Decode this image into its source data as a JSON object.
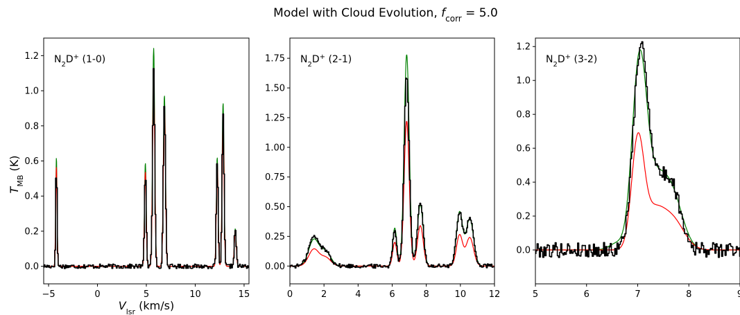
{
  "figure": {
    "title_prefix": "Model with Cloud Evolution, ",
    "title_var": "f",
    "title_sub": "corr",
    "title_suffix": " = 5.0"
  },
  "colors": {
    "observed": "#000000",
    "model_red": "#ff0000",
    "model_green": "#008000"
  },
  "chart_data": [
    {
      "type": "line",
      "panel_label": {
        "main": "N",
        "sub": "2",
        "mid": "D",
        "sup": "+",
        "tail": " (1-0)"
      },
      "ylabel": {
        "main": "T",
        "sub": "MB",
        "unit": " (K)"
      },
      "xlabel": {
        "main": "V",
        "sub": "lsr",
        "unit": " (km/s)"
      },
      "xlim": [
        -5.5,
        15.5
      ],
      "ylim": [
        -0.1,
        1.3
      ],
      "xticks": [
        -5,
        0,
        5,
        10,
        15
      ],
      "xtick_labels": [
        "−5",
        "0",
        "5",
        "10",
        "15"
      ],
      "yticks": [
        0.0,
        0.2,
        0.4,
        0.6,
        0.8,
        1.0,
        1.2
      ],
      "ytick_labels": [
        "0.0",
        "0.2",
        "0.4",
        "0.6",
        "0.8",
        "1.0",
        "1.2"
      ],
      "series": [
        {
          "key": "obs",
          "style": "step",
          "noise": 0.013,
          "scale": 1.0,
          "components": [
            [
              -4.2,
              0.58,
              0.07
            ],
            [
              4.9,
              0.55,
              0.09
            ],
            [
              5.75,
              1.12,
              0.11
            ],
            [
              6.85,
              0.93,
              0.11
            ],
            [
              12.25,
              0.6,
              0.09
            ],
            [
              12.85,
              0.86,
              0.1
            ],
            [
              14.1,
              0.21,
              0.1
            ]
          ]
        },
        {
          "key": "red",
          "style": "smooth",
          "noise": 0,
          "scale": 0.98,
          "components": [
            [
              -4.2,
              0.58,
              0.07
            ],
            [
              4.9,
              0.55,
              0.09
            ],
            [
              5.75,
              1.12,
              0.11
            ],
            [
              6.85,
              0.93,
              0.11
            ],
            [
              12.25,
              0.6,
              0.09
            ],
            [
              12.85,
              0.86,
              0.1
            ],
            [
              14.1,
              0.21,
              0.1
            ]
          ]
        },
        {
          "key": "green",
          "style": "smooth",
          "noise": 0,
          "scale": 1.07,
          "components": [
            [
              -4.2,
              0.58,
              0.07
            ],
            [
              4.9,
              0.55,
              0.09
            ],
            [
              5.75,
              1.16,
              0.11
            ],
            [
              6.85,
              0.91,
              0.11
            ],
            [
              12.25,
              0.58,
              0.09
            ],
            [
              12.85,
              0.87,
              0.1
            ],
            [
              14.1,
              0.2,
              0.1
            ]
          ]
        }
      ]
    },
    {
      "type": "line",
      "panel_label": {
        "main": "N",
        "sub": "2",
        "mid": "D",
        "sup": "+",
        "tail": " (2-1)"
      },
      "xlim": [
        0,
        12
      ],
      "ylim": [
        -0.15,
        1.92
      ],
      "xticks": [
        0,
        2,
        4,
        6,
        8,
        10,
        12
      ],
      "xtick_labels": [
        "0",
        "2",
        "4",
        "6",
        "8",
        "10",
        "12"
      ],
      "yticks": [
        0.0,
        0.25,
        0.5,
        0.75,
        1.0,
        1.25,
        1.5,
        1.75
      ],
      "ytick_labels": [
        "0.00",
        "0.25",
        "0.50",
        "0.75",
        "1.00",
        "1.25",
        "1.50",
        "1.75"
      ],
      "series": [
        {
          "key": "obs",
          "style": "step",
          "noise": 0.018,
          "scale": 1.0,
          "components": [
            [
              1.4,
              0.24,
              0.3
            ],
            [
              2.1,
              0.12,
              0.3
            ],
            [
              6.15,
              0.3,
              0.12
            ],
            [
              6.85,
              1.6,
              0.15
            ],
            [
              7.65,
              0.53,
              0.17
            ],
            [
              9.95,
              0.45,
              0.18
            ],
            [
              10.55,
              0.4,
              0.22
            ]
          ]
        },
        {
          "key": "red",
          "style": "smooth",
          "noise": 0,
          "scale": 1.0,
          "components": [
            [
              1.4,
              0.14,
              0.3
            ],
            [
              2.1,
              0.07,
              0.3
            ],
            [
              6.15,
              0.2,
              0.12
            ],
            [
              6.85,
              1.22,
              0.15
            ],
            [
              7.65,
              0.34,
              0.17
            ],
            [
              9.95,
              0.26,
              0.18
            ],
            [
              10.55,
              0.24,
              0.22
            ]
          ]
        },
        {
          "key": "green",
          "style": "smooth",
          "noise": 0,
          "scale": 1.0,
          "components": [
            [
              1.4,
              0.22,
              0.3
            ],
            [
              2.1,
              0.12,
              0.3
            ],
            [
              6.15,
              0.32,
              0.12
            ],
            [
              6.85,
              1.78,
              0.15
            ],
            [
              7.65,
              0.52,
              0.17
            ],
            [
              9.95,
              0.45,
              0.18
            ],
            [
              10.55,
              0.4,
              0.22
            ]
          ]
        }
      ]
    },
    {
      "type": "line",
      "panel_label": {
        "main": "N",
        "sub": "2",
        "mid": "D",
        "sup": "+",
        "tail": " (3-2)"
      },
      "xlim": [
        5,
        9
      ],
      "ylim": [
        -0.2,
        1.25
      ],
      "xticks": [
        5,
        6,
        7,
        8,
        9
      ],
      "xtick_labels": [
        "5",
        "6",
        "7",
        "8",
        "9"
      ],
      "yticks": [
        0.0,
        0.2,
        0.4,
        0.6,
        0.8,
        1.0,
        1.2
      ],
      "ytick_labels": [
        "0.0",
        "0.2",
        "0.4",
        "0.6",
        "0.8",
        "1.0",
        "1.2"
      ],
      "series": [
        {
          "key": "obs",
          "style": "step",
          "noise": 0.045,
          "scale": 1.0,
          "components": [
            [
              7.05,
              1.05,
              0.14
            ],
            [
              7.35,
              0.38,
              0.22
            ],
            [
              7.7,
              0.28,
              0.17
            ]
          ]
        },
        {
          "key": "red",
          "style": "smooth",
          "noise": 0,
          "scale": 1.0,
          "components": [
            [
              7.0,
              0.6,
              0.12
            ],
            [
              7.3,
              0.22,
              0.22
            ],
            [
              7.7,
              0.16,
              0.22
            ]
          ]
        },
        {
          "key": "green",
          "style": "smooth",
          "noise": 0,
          "scale": 1.0,
          "components": [
            [
              7.03,
              1.04,
              0.14
            ],
            [
              7.35,
              0.38,
              0.22
            ],
            [
              7.7,
              0.26,
              0.2
            ],
            [
              6.6,
              0.04,
              0.15
            ]
          ]
        }
      ]
    }
  ]
}
